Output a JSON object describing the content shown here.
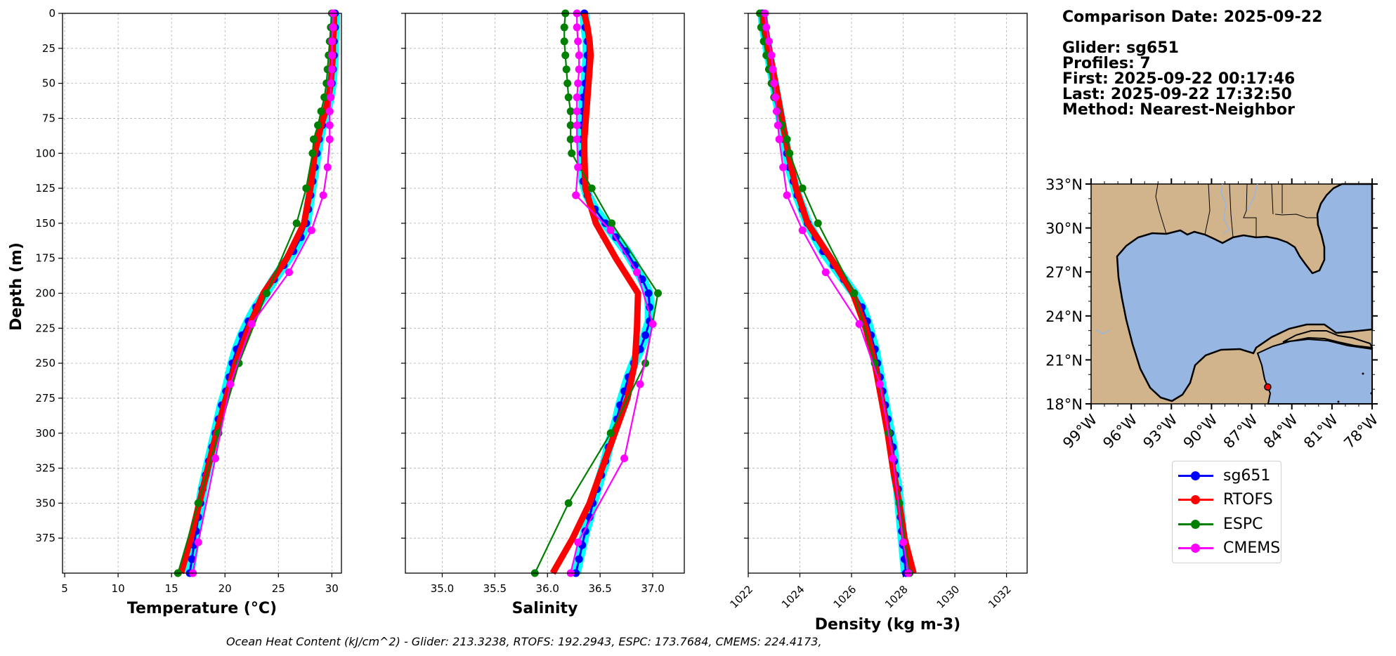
{
  "info_panel": {
    "comparison_date": "Comparison Date: 2025-09-22",
    "glider": "Glider: sg651",
    "profiles": "Profiles: 7",
    "first": "First: 2025-09-22 00:17:46",
    "last": "Last: 2025-09-22 17:32:50",
    "method": "Method: Nearest-Neighbor"
  },
  "caption": "Ocean Heat Content (kJ/cm^2) - Glider: 213.3238,  RTOFS: 192.2943,  ESPC: 173.7684,  CMEMS: 224.4173,",
  "colors": {
    "glider": "#0000ff",
    "glider_halo": "#00ffff",
    "rtofs": "#ff0000",
    "espc": "#008000",
    "cmems": "#ff00ff",
    "land": "#d2b48c",
    "ocean": "#97b6e1",
    "grid": "#b0b0b0"
  },
  "chart_data": [
    {
      "type": "line",
      "panel": "temperature",
      "xlabel": "Temperature (°C)",
      "ylabel": "Depth (m)",
      "xlim": [
        4.8,
        30.9
      ],
      "ylim": [
        400,
        0
      ],
      "xticks": [
        5,
        10,
        15,
        20,
        25,
        30
      ],
      "yticks": [
        0,
        25,
        50,
        75,
        100,
        125,
        150,
        175,
        200,
        225,
        250,
        275,
        300,
        325,
        350,
        375
      ],
      "grid": true,
      "series": [
        {
          "name": "sg651",
          "depth": [
            0,
            10,
            20,
            30,
            40,
            50,
            60,
            70,
            80,
            90,
            100,
            110,
            120,
            130,
            140,
            150,
            160,
            170,
            180,
            190,
            200,
            210,
            220,
            230,
            240,
            250,
            260,
            270,
            280,
            290,
            300,
            310,
            320,
            330,
            340,
            350,
            360,
            370,
            380,
            390,
            400
          ],
          "values": [
            30.3,
            30.3,
            30.2,
            30.2,
            30.1,
            30.0,
            29.8,
            29.5,
            29.1,
            28.8,
            28.6,
            28.4,
            28.2,
            28.0,
            27.8,
            27.6,
            27.1,
            26.4,
            25.5,
            24.6,
            23.8,
            22.9,
            22.2,
            21.6,
            21.1,
            20.7,
            20.4,
            20.1,
            19.7,
            19.4,
            19.1,
            18.8,
            18.5,
            18.2,
            17.9,
            17.7,
            17.5,
            17.3,
            17.1,
            16.9,
            16.7
          ]
        },
        {
          "name": "RTOFS",
          "depth": [
            0,
            10,
            20,
            30,
            40,
            50,
            60,
            70,
            80,
            90,
            100,
            125,
            150,
            175,
            200,
            225,
            250,
            275,
            300,
            325,
            350,
            375,
            400
          ],
          "values": [
            30.2,
            30.2,
            30.1,
            30.1,
            30.0,
            29.9,
            29.7,
            29.4,
            29.0,
            28.7,
            28.4,
            28.0,
            27.4,
            25.8,
            23.6,
            22.2,
            21.0,
            20.1,
            19.2,
            18.4,
            17.6,
            16.8,
            15.9
          ]
        },
        {
          "name": "ESPC",
          "depth": [
            0,
            10,
            20,
            30,
            40,
            50,
            60,
            70,
            80,
            90,
            100,
            125,
            150,
            200,
            250,
            300,
            350,
            400
          ],
          "values": [
            30.0,
            29.9,
            29.8,
            29.7,
            29.6,
            29.5,
            29.3,
            29.0,
            28.7,
            28.3,
            28.2,
            27.6,
            26.7,
            23.9,
            21.3,
            19.4,
            17.5,
            15.6
          ]
        },
        {
          "name": "CMEMS",
          "depth": [
            0,
            10,
            20,
            30,
            40,
            50,
            60,
            70,
            80,
            90,
            110,
            130,
            155,
            185,
            222,
            265,
            318,
            378,
            400
          ],
          "values": [
            30.1,
            30.1,
            30.0,
            30.0,
            30.0,
            29.9,
            29.9,
            29.8,
            29.8,
            29.8,
            29.6,
            29.2,
            28.1,
            26.0,
            22.5,
            20.5,
            19.1,
            17.5,
            17.0
          ]
        }
      ]
    },
    {
      "type": "line",
      "panel": "salinity",
      "xlabel": "Salinity",
      "xlim": [
        34.65,
        37.3
      ],
      "ylim": [
        400,
        0
      ],
      "xticks": [
        35.0,
        35.5,
        36.0,
        36.5,
        37.0
      ],
      "xticklabels": [
        "35.0",
        "35.5",
        "36.0",
        "36.5",
        "37.0"
      ],
      "grid": true,
      "series": [
        {
          "name": "sg651",
          "depth": [
            0,
            10,
            20,
            30,
            40,
            50,
            60,
            70,
            80,
            90,
            100,
            110,
            120,
            130,
            140,
            150,
            160,
            170,
            180,
            190,
            200,
            210,
            220,
            230,
            240,
            250,
            260,
            270,
            280,
            290,
            300,
            310,
            320,
            330,
            340,
            350,
            360,
            370,
            380,
            390,
            400
          ],
          "values": [
            36.35,
            36.36,
            36.38,
            36.38,
            36.37,
            36.36,
            36.34,
            36.34,
            36.33,
            36.33,
            36.33,
            36.33,
            36.34,
            36.38,
            36.45,
            36.55,
            36.65,
            36.75,
            36.83,
            36.9,
            36.96,
            36.97,
            36.97,
            36.93,
            36.88,
            36.82,
            36.77,
            36.73,
            36.69,
            36.66,
            36.62,
            36.58,
            36.55,
            36.51,
            36.47,
            36.43,
            36.4,
            36.36,
            36.33,
            36.3,
            36.27
          ]
        },
        {
          "name": "RTOFS",
          "depth": [
            0,
            10,
            20,
            30,
            40,
            50,
            60,
            70,
            80,
            90,
            100,
            125,
            150,
            175,
            200,
            225,
            250,
            275,
            300,
            325,
            350,
            375,
            400
          ],
          "values": [
            36.35,
            36.38,
            36.4,
            36.41,
            36.4,
            36.39,
            36.38,
            36.37,
            36.36,
            36.35,
            36.35,
            36.36,
            36.46,
            36.65,
            36.86,
            36.85,
            36.83,
            36.76,
            36.64,
            36.52,
            36.4,
            36.24,
            36.05
          ]
        },
        {
          "name": "ESPC",
          "depth": [
            0,
            10,
            20,
            30,
            40,
            50,
            60,
            70,
            80,
            90,
            100,
            125,
            150,
            200,
            250,
            300,
            350,
            400
          ],
          "values": [
            36.17,
            36.16,
            36.16,
            36.17,
            36.18,
            36.19,
            36.2,
            36.22,
            36.22,
            36.22,
            36.23,
            36.42,
            36.61,
            37.05,
            36.93,
            36.6,
            36.2,
            35.88
          ]
        },
        {
          "name": "CMEMS",
          "depth": [
            0,
            10,
            20,
            30,
            40,
            50,
            60,
            70,
            80,
            90,
            110,
            130,
            155,
            185,
            222,
            265,
            318,
            378,
            400
          ],
          "values": [
            36.28,
            36.28,
            36.29,
            36.3,
            36.3,
            36.29,
            36.28,
            36.28,
            36.28,
            36.28,
            36.29,
            36.27,
            36.6,
            36.85,
            37.0,
            36.88,
            36.73,
            36.29,
            36.22
          ]
        }
      ]
    },
    {
      "type": "line",
      "panel": "density",
      "xlabel": "Density (kg m-3)",
      "xlim": [
        1022.0,
        1032.8
      ],
      "ylim": [
        400,
        0
      ],
      "xticks": [
        1022,
        1024,
        1026,
        1028,
        1030,
        1032
      ],
      "grid": true,
      "series": [
        {
          "name": "sg651",
          "depth": [
            0,
            10,
            20,
            30,
            40,
            50,
            60,
            70,
            80,
            90,
            100,
            110,
            120,
            130,
            140,
            150,
            160,
            170,
            180,
            190,
            200,
            210,
            220,
            230,
            240,
            250,
            260,
            270,
            280,
            290,
            300,
            310,
            320,
            330,
            340,
            350,
            360,
            370,
            380,
            390,
            400
          ],
          "values": [
            1022.55,
            1022.6,
            1022.7,
            1022.8,
            1022.9,
            1023.0,
            1023.1,
            1023.2,
            1023.3,
            1023.4,
            1023.5,
            1023.6,
            1023.75,
            1023.9,
            1024.1,
            1024.3,
            1024.6,
            1024.9,
            1025.3,
            1025.7,
            1026.1,
            1026.4,
            1026.6,
            1026.75,
            1026.9,
            1027.0,
            1027.1,
            1027.2,
            1027.3,
            1027.4,
            1027.5,
            1027.6,
            1027.65,
            1027.7,
            1027.8,
            1027.85,
            1027.9,
            1027.95,
            1028.0,
            1028.05,
            1028.1
          ]
        },
        {
          "name": "RTOFS",
          "depth": [
            0,
            10,
            20,
            30,
            40,
            50,
            60,
            70,
            80,
            90,
            100,
            125,
            150,
            175,
            200,
            225,
            250,
            275,
            300,
            325,
            350,
            375,
            400
          ],
          "values": [
            1022.6,
            1022.65,
            1022.75,
            1022.85,
            1022.95,
            1023.05,
            1023.15,
            1023.25,
            1023.35,
            1023.45,
            1023.55,
            1023.85,
            1024.3,
            1025.2,
            1026.05,
            1026.55,
            1026.9,
            1027.15,
            1027.4,
            1027.6,
            1027.85,
            1028.05,
            1028.4
          ]
        },
        {
          "name": "ESPC",
          "depth": [
            0,
            10,
            20,
            30,
            40,
            50,
            60,
            70,
            80,
            90,
            100,
            125,
            150,
            200,
            250,
            300,
            350,
            400
          ],
          "values": [
            1022.45,
            1022.5,
            1022.6,
            1022.7,
            1022.8,
            1022.9,
            1023.0,
            1023.15,
            1023.3,
            1023.5,
            1023.6,
            1024.1,
            1024.7,
            1026.1,
            1026.9,
            1027.45,
            1027.85,
            1028.25
          ]
        },
        {
          "name": "CMEMS",
          "depth": [
            0,
            10,
            20,
            30,
            40,
            50,
            60,
            70,
            80,
            90,
            110,
            130,
            155,
            185,
            222,
            265,
            318,
            378,
            400
          ],
          "values": [
            1022.65,
            1022.7,
            1022.8,
            1022.9,
            1022.95,
            1023.0,
            1023.05,
            1023.1,
            1023.15,
            1023.2,
            1023.35,
            1023.5,
            1024.1,
            1025.0,
            1026.3,
            1027.1,
            1027.6,
            1028.0,
            1028.2
          ]
        }
      ]
    },
    {
      "type": "map",
      "panel": "location",
      "xticklabels": [
        "99°W",
        "96°W",
        "93°W",
        "90°W",
        "87°W",
        "84°W",
        "81°W",
        "78°W"
      ],
      "yticklabels": [
        "18°N",
        "21°N",
        "24°N",
        "27°N",
        "30°N",
        "33°N"
      ],
      "lon_range": [
        -99,
        -78
      ],
      "lat_range": [
        18,
        33
      ],
      "glider_position": {
        "lon": -85.8,
        "lat": 19.15
      }
    }
  ],
  "legend": [
    "sg651",
    "RTOFS",
    "ESPC",
    "CMEMS"
  ]
}
